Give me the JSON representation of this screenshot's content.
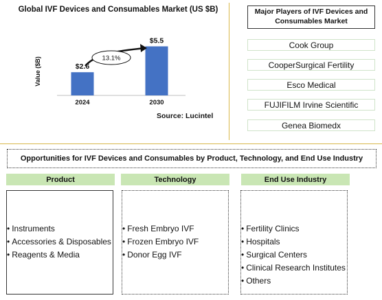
{
  "chart_data": {
    "type": "bar",
    "title": "Global IVF Devices and Consumables Market (US $B)",
    "ylabel": "Value ($B)",
    "categories": [
      "2024",
      "2030"
    ],
    "values": [
      2.6,
      5.5
    ],
    "data_labels": [
      "$2.6",
      "$5.5"
    ],
    "ylim": [
      0,
      6
    ],
    "cagr_label": "13.1%",
    "bar_color": "#4472c4",
    "grid": false
  },
  "source": "Source: Lucintel",
  "players": {
    "header": "Major Players of IVF Devices and Consumables Market",
    "items": [
      "Cook Group",
      "CooperSurgical Fertility",
      "Esco Medical",
      "FUJIFILM Irvine Scientific",
      "Genea Biomedx"
    ]
  },
  "opportunities": {
    "title": "Opportunities for IVF Devices and Consumables by Product, Technology, and End Use Industry",
    "header_color": "#c9e6b4",
    "categories": [
      {
        "name": "Product",
        "items": [
          "Instruments",
          "Accessories & Disposables",
          "Reagents & Media"
        ]
      },
      {
        "name": "Technology",
        "items": [
          "Fresh Embryo IVF",
          "Frozen Embryo IVF",
          "Donor Egg IVF"
        ]
      },
      {
        "name": "End Use Industry",
        "items": [
          "Fertility Clinics",
          "Hospitals",
          "Surgical Centers",
          "Clinical Research Institutes",
          "Others"
        ]
      }
    ]
  }
}
